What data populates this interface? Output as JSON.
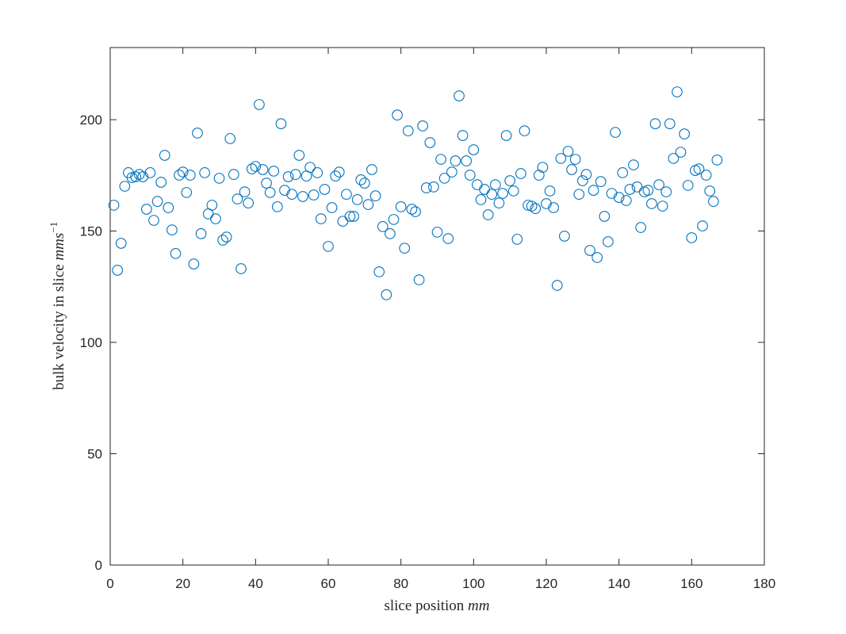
{
  "chart_data": {
    "type": "scatter",
    "xlabel": {
      "text": "slice position",
      "unit": "mm"
    },
    "ylabel": {
      "text": "bulk velocity in slice",
      "unit": "mms",
      "exponent": "−1"
    },
    "xlim": [
      0,
      180
    ],
    "ylim": [
      0,
      232.4
    ],
    "xticks": [
      0,
      20,
      40,
      60,
      80,
      100,
      120,
      140,
      160,
      180
    ],
    "yticks": [
      0,
      50,
      100,
      150,
      200
    ],
    "box": true,
    "grid": false,
    "color": "#0072bd",
    "series": [
      {
        "x": [
          1,
          2,
          3,
          4,
          5,
          6,
          7,
          8,
          9,
          10,
          11,
          12,
          13,
          14,
          15,
          16,
          17,
          18,
          19,
          20,
          21,
          22,
          23,
          24,
          25,
          26,
          27,
          28,
          29,
          30,
          31,
          32,
          33,
          34,
          35,
          36,
          37,
          38,
          39,
          40,
          41,
          42,
          43,
          44,
          45,
          46,
          47,
          48,
          49,
          50,
          51,
          52,
          53,
          54,
          55,
          56,
          57,
          58,
          59,
          60,
          61,
          62,
          63,
          64,
          65,
          66,
          67,
          68,
          69,
          70,
          71,
          72,
          73,
          74,
          75,
          76,
          77,
          78,
          79,
          80,
          81,
          82,
          83,
          84,
          85,
          86,
          87,
          88,
          89,
          90,
          91,
          92,
          93,
          94,
          95,
          96,
          97,
          98,
          99,
          100,
          101,
          102,
          103,
          104,
          105,
          106,
          107,
          108,
          109,
          110,
          111,
          112,
          113,
          114,
          115,
          116,
          117,
          118,
          119,
          120,
          121,
          122,
          123,
          124,
          125,
          126,
          127,
          128,
          129,
          130,
          131,
          132,
          133,
          134,
          135,
          136,
          137,
          138,
          139,
          140,
          141,
          142,
          143,
          144,
          145,
          146,
          147,
          148,
          149,
          150,
          151,
          152,
          153,
          154,
          155,
          156,
          157,
          158,
          159,
          160,
          161,
          162,
          163,
          164,
          165,
          166,
          167
        ],
        "values": [
          161.6,
          132.4,
          144.5,
          170.1,
          176.2,
          174.0,
          174.4,
          175.4,
          174.4,
          159.8,
          176.2,
          154.8,
          163.3,
          171.9,
          184.0,
          160.5,
          150.5,
          139.9,
          175.1,
          176.5,
          167.3,
          175.1,
          135.2,
          194.0,
          148.8,
          176.2,
          157.7,
          161.6,
          155.5,
          173.7,
          145.9,
          147.3,
          191.5,
          175.4,
          164.4,
          133.1,
          167.6,
          162.6,
          177.9,
          179.0,
          206.8,
          177.6,
          171.5,
          167.3,
          176.9,
          160.9,
          198.2,
          168.3,
          174.4,
          166.5,
          175.4,
          184.0,
          165.5,
          174.7,
          178.6,
          166.2,
          176.2,
          155.5,
          168.7,
          143.1,
          160.5,
          174.7,
          176.5,
          154.4,
          166.5,
          156.6,
          156.6,
          164.1,
          173.0,
          171.5,
          161.9,
          177.6,
          165.8,
          131.7,
          152.0,
          121.4,
          148.8,
          155.2,
          202.1,
          160.9,
          142.3,
          195.0,
          159.8,
          158.7,
          128.1,
          197.2,
          169.4,
          189.7,
          169.8,
          149.5,
          182.2,
          173.7,
          146.6,
          176.5,
          181.5,
          210.7,
          192.9,
          181.5,
          175.1,
          186.5,
          170.8,
          164.1,
          168.7,
          157.3,
          166.5,
          170.8,
          162.6,
          166.9,
          192.9,
          172.6,
          168.0,
          146.3,
          175.8,
          195.0,
          161.6,
          161.2,
          160.1,
          175.1,
          178.6,
          162.3,
          168.0,
          160.5,
          125.6,
          182.6,
          147.7,
          185.8,
          177.6,
          182.2,
          166.5,
          172.6,
          175.4,
          141.3,
          168.3,
          138.1,
          172.2,
          156.6,
          145.2,
          166.9,
          194.3,
          165.1,
          176.2,
          163.7,
          168.7,
          179.7,
          169.8,
          151.6,
          167.6,
          168.3,
          162.3,
          198.2,
          170.8,
          161.2,
          167.6,
          198.2,
          182.6,
          212.5,
          185.4,
          193.6,
          170.5,
          147.0,
          177.2,
          177.9,
          152.3,
          175.1,
          168.0,
          163.3,
          181.9
        ]
      }
    ]
  }
}
